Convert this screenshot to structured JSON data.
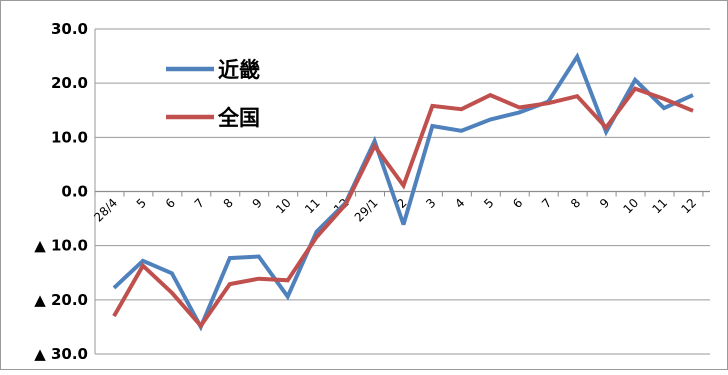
{
  "chart_data": {
    "type": "line",
    "title": "",
    "xlabel": "",
    "ylabel": "",
    "ylim": [
      -30,
      30
    ],
    "yticks": [
      30,
      20,
      10,
      0,
      -10,
      -20,
      -30
    ],
    "ytick_labels": [
      "30.0",
      "20.0",
      "10.0",
      "0.0",
      "▲ 10.0",
      "▲ 20.0",
      "▲ 30.0"
    ],
    "categories": [
      "28/4",
      "5",
      "6",
      "7",
      "8",
      "9",
      "10",
      "11",
      "12",
      "29/1",
      "2",
      "3",
      "4",
      "5",
      "6",
      "7",
      "8",
      "9",
      "10",
      "11",
      "12"
    ],
    "series": [
      {
        "name": "近畿",
        "color": "#4f81bd",
        "values": [
          -17.8,
          -12.8,
          -15.1,
          -25.0,
          -12.3,
          -12.0,
          -19.4,
          -7.4,
          -2.1,
          9.3,
          -6.1,
          12.1,
          11.2,
          13.3,
          14.6,
          16.6,
          24.9,
          11.0,
          20.6,
          15.4,
          17.8
        ]
      },
      {
        "name": "全国",
        "color": "#c0504d",
        "values": [
          -23.0,
          -13.7,
          -18.7,
          -24.8,
          -17.1,
          -16.1,
          -16.4,
          -8.4,
          -2.4,
          8.4,
          1.1,
          15.8,
          15.2,
          17.8,
          15.5,
          16.3,
          17.6,
          11.8,
          19.0,
          17.1,
          14.9
        ]
      }
    ],
    "legend_position": "top-left",
    "grid": true
  }
}
